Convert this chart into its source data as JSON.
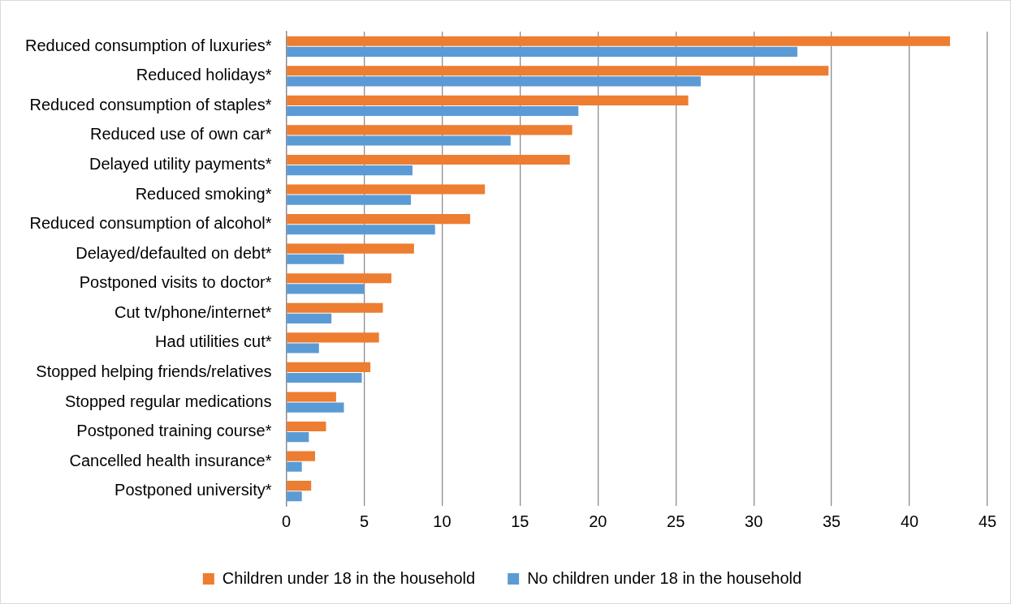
{
  "chart_data": {
    "type": "bar",
    "orientation": "horizontal",
    "categories": [
      "Reduced consumption of luxuries*",
      "Reduced holidays*",
      "Reduced consumption of staples*",
      "Reduced use of own car*",
      "Delayed utility payments*",
      "Reduced smoking*",
      "Reduced consumption of alcohol*",
      "Delayed/defaulted on debt*",
      "Postponed visits to doctor*",
      "Cut tv/phone/internet*",
      "Had utilities cut*",
      "Stopped helping friends/relatives",
      "Stopped regular medications",
      "Postponed training course*",
      "Cancelled health insurance*",
      "Postponed university*"
    ],
    "series": [
      {
        "name": "Children under 18 in the household",
        "color": "#ed7d31",
        "values": [
          42.6,
          34.8,
          25.8,
          18.35,
          18.2,
          12.75,
          11.8,
          8.2,
          6.75,
          6.2,
          5.95,
          5.4,
          3.2,
          2.55,
          1.85,
          1.6
        ]
      },
      {
        "name": "No children under 18 in the household",
        "color": "#5b9bd5",
        "values": [
          32.8,
          26.6,
          18.75,
          14.4,
          8.1,
          8.0,
          9.55,
          3.7,
          5.0,
          2.9,
          2.1,
          4.85,
          3.7,
          1.45,
          1.0,
          1.0
        ]
      }
    ],
    "xlim": [
      0,
      45
    ],
    "xticks": [
      0,
      5,
      10,
      15,
      20,
      25,
      30,
      35,
      40,
      45
    ],
    "grid": "x",
    "legend": "bottom"
  }
}
